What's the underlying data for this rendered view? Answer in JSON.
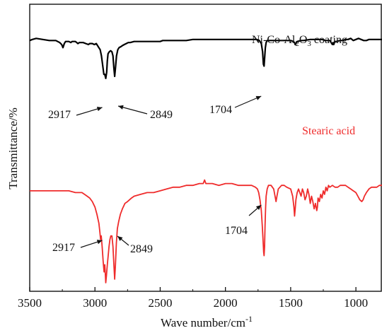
{
  "chart_data": {
    "type": "line",
    "title": "",
    "xlabel": "Wave number/cm",
    "xlabel_sup": "-1",
    "ylabel": "Transmittance/%",
    "xlim": [
      3500,
      800
    ],
    "x_reversed": true,
    "y_ticks_shown": false,
    "xticks": [
      3500,
      3000,
      2500,
      2000,
      1500,
      1000
    ],
    "series": [
      {
        "name": "Ni-Co-Al2O3 coating",
        "label_text": "Ni-Co-Al",
        "label_sub1": "2",
        "label_mid": "O",
        "label_sub2": "3",
        "label_tail": " coating",
        "color": "#000000",
        "baseline": 96,
        "points": [
          [
            3500,
            95
          ],
          [
            3480,
            96
          ],
          [
            3450,
            97
          ],
          [
            3400,
            96
          ],
          [
            3350,
            95
          ],
          [
            3300,
            95
          ],
          [
            3270,
            93
          ],
          [
            3255,
            91
          ],
          [
            3245,
            88
          ],
          [
            3235,
            92
          ],
          [
            3225,
            94
          ],
          [
            3200,
            94
          ],
          [
            3185,
            93
          ],
          [
            3175,
            94
          ],
          [
            3150,
            94
          ],
          [
            3130,
            92
          ],
          [
            3120,
            93
          ],
          [
            3090,
            93
          ],
          [
            3070,
            92
          ],
          [
            3050,
            91
          ],
          [
            3040,
            92
          ],
          [
            3020,
            92
          ],
          [
            3005,
            91
          ],
          [
            2990,
            92
          ],
          [
            2975,
            89
          ],
          [
            2960,
            86
          ],
          [
            2950,
            80
          ],
          [
            2940,
            70
          ],
          [
            2932,
            62
          ],
          [
            2925,
            62
          ],
          [
            2917,
            58
          ],
          [
            2910,
            64
          ],
          [
            2905,
            75
          ],
          [
            2900,
            82
          ],
          [
            2890,
            84
          ],
          [
            2880,
            85
          ],
          [
            2870,
            84
          ],
          [
            2862,
            80
          ],
          [
            2855,
            68
          ],
          [
            2849,
            60
          ],
          [
            2843,
            68
          ],
          [
            2835,
            80
          ],
          [
            2825,
            86
          ],
          [
            2815,
            88
          ],
          [
            2800,
            89
          ],
          [
            2790,
            90
          ],
          [
            2775,
            91
          ],
          [
            2760,
            92
          ],
          [
            2745,
            93
          ],
          [
            2730,
            93
          ],
          [
            2700,
            94
          ],
          [
            2650,
            94
          ],
          [
            2600,
            94
          ],
          [
            2550,
            94
          ],
          [
            2500,
            94
          ],
          [
            2480,
            95
          ],
          [
            2450,
            95
          ],
          [
            2400,
            95
          ],
          [
            2350,
            95
          ],
          [
            2300,
            95
          ],
          [
            2250,
            96
          ],
          [
            2200,
            96
          ],
          [
            2150,
            96
          ],
          [
            2100,
            96
          ],
          [
            2050,
            96
          ],
          [
            2000,
            96
          ],
          [
            1950,
            96
          ],
          [
            1900,
            96
          ],
          [
            1850,
            96
          ],
          [
            1800,
            96
          ],
          [
            1760,
            96
          ],
          [
            1740,
            95
          ],
          [
            1725,
            92
          ],
          [
            1715,
            84
          ],
          [
            1709,
            72
          ],
          [
            1704,
            70
          ],
          [
            1700,
            77
          ],
          [
            1694,
            88
          ],
          [
            1688,
            93
          ],
          [
            1680,
            95
          ],
          [
            1650,
            95
          ],
          [
            1600,
            95
          ],
          [
            1550,
            95
          ],
          [
            1500,
            95
          ],
          [
            1480,
            94
          ],
          [
            1470,
            93
          ],
          [
            1465,
            91
          ],
          [
            1460,
            92
          ],
          [
            1450,
            94
          ],
          [
            1420,
            95
          ],
          [
            1400,
            95
          ],
          [
            1350,
            96
          ],
          [
            1300,
            96
          ],
          [
            1260,
            96
          ],
          [
            1230,
            95
          ],
          [
            1200,
            95
          ],
          [
            1190,
            93
          ],
          [
            1180,
            91
          ],
          [
            1175,
            93
          ],
          [
            1170,
            91
          ],
          [
            1165,
            93
          ],
          [
            1160,
            94
          ],
          [
            1150,
            94
          ],
          [
            1120,
            95
          ],
          [
            1100,
            95
          ],
          [
            1080,
            96
          ],
          [
            1060,
            96
          ],
          [
            1040,
            97
          ],
          [
            1030,
            96
          ],
          [
            1020,
            95
          ],
          [
            1000,
            96
          ],
          [
            980,
            97
          ],
          [
            960,
            96
          ],
          [
            940,
            95
          ],
          [
            920,
            95
          ],
          [
            900,
            96
          ],
          [
            880,
            96
          ],
          [
            860,
            96
          ],
          [
            840,
            96
          ],
          [
            820,
            96
          ],
          [
            800,
            96
          ]
        ]
      },
      {
        "name": "Stearic acid",
        "label_text": "Stearic acid",
        "color": "#ef2b2b",
        "points": [
          [
            3500,
            53
          ],
          [
            3450,
            53
          ],
          [
            3400,
            53
          ],
          [
            3350,
            53
          ],
          [
            3300,
            53
          ],
          [
            3250,
            53
          ],
          [
            3200,
            53
          ],
          [
            3150,
            52
          ],
          [
            3100,
            52
          ],
          [
            3080,
            51
          ],
          [
            3060,
            50
          ],
          [
            3040,
            49
          ],
          [
            3020,
            47
          ],
          [
            3000,
            44
          ],
          [
            2985,
            40
          ],
          [
            2970,
            35
          ],
          [
            2962,
            30
          ],
          [
            2957,
            26
          ],
          [
            2952,
            28
          ],
          [
            2945,
            22
          ],
          [
            2937,
            14
          ],
          [
            2930,
            8
          ],
          [
            2925,
            12
          ],
          [
            2920,
            6
          ],
          [
            2917,
            2
          ],
          [
            2912,
            6
          ],
          [
            2905,
            12
          ],
          [
            2900,
            16
          ],
          [
            2892,
            22
          ],
          [
            2885,
            26
          ],
          [
            2878,
            28
          ],
          [
            2870,
            28
          ],
          [
            2862,
            22
          ],
          [
            2855,
            12
          ],
          [
            2849,
            4
          ],
          [
            2843,
            12
          ],
          [
            2836,
            24
          ],
          [
            2828,
            32
          ],
          [
            2818,
            36
          ],
          [
            2805,
            40
          ],
          [
            2790,
            43
          ],
          [
            2770,
            46
          ],
          [
            2750,
            47
          ],
          [
            2720,
            49
          ],
          [
            2700,
            50
          ],
          [
            2650,
            51
          ],
          [
            2600,
            52
          ],
          [
            2550,
            52
          ],
          [
            2500,
            53
          ],
          [
            2450,
            54
          ],
          [
            2400,
            55
          ],
          [
            2350,
            55
          ],
          [
            2300,
            56
          ],
          [
            2250,
            56
          ],
          [
            2200,
            57
          ],
          [
            2170,
            57
          ],
          [
            2160,
            59
          ],
          [
            2150,
            57
          ],
          [
            2100,
            57
          ],
          [
            2050,
            56
          ],
          [
            2000,
            57
          ],
          [
            1950,
            57
          ],
          [
            1900,
            56
          ],
          [
            1850,
            56
          ],
          [
            1800,
            56
          ],
          [
            1770,
            55
          ],
          [
            1755,
            54
          ],
          [
            1745,
            52
          ],
          [
            1735,
            48
          ],
          [
            1725,
            42
          ],
          [
            1718,
            34
          ],
          [
            1712,
            26
          ],
          [
            1707,
            19
          ],
          [
            1704,
            17
          ],
          [
            1700,
            22
          ],
          [
            1696,
            34
          ],
          [
            1692,
            44
          ],
          [
            1688,
            50
          ],
          [
            1680,
            54
          ],
          [
            1670,
            56
          ],
          [
            1650,
            56
          ],
          [
            1630,
            54
          ],
          [
            1620,
            50
          ],
          [
            1612,
            47
          ],
          [
            1605,
            50
          ],
          [
            1595,
            54
          ],
          [
            1570,
            56
          ],
          [
            1550,
            56
          ],
          [
            1530,
            55
          ],
          [
            1500,
            54
          ],
          [
            1485,
            50
          ],
          [
            1475,
            44
          ],
          [
            1470,
            39
          ],
          [
            1465,
            43
          ],
          [
            1460,
            48
          ],
          [
            1450,
            52
          ],
          [
            1440,
            54
          ],
          [
            1420,
            50
          ],
          [
            1410,
            54
          ],
          [
            1400,
            52
          ],
          [
            1390,
            48
          ],
          [
            1380,
            50
          ],
          [
            1370,
            54
          ],
          [
            1360,
            51
          ],
          [
            1350,
            46
          ],
          [
            1340,
            50
          ],
          [
            1330,
            47
          ],
          [
            1320,
            43
          ],
          [
            1310,
            46
          ],
          [
            1300,
            42
          ],
          [
            1295,
            44
          ],
          [
            1290,
            49
          ],
          [
            1280,
            47
          ],
          [
            1270,
            51
          ],
          [
            1260,
            49
          ],
          [
            1250,
            53
          ],
          [
            1240,
            51
          ],
          [
            1230,
            55
          ],
          [
            1220,
            53
          ],
          [
            1210,
            56
          ],
          [
            1200,
            55
          ],
          [
            1180,
            56
          ],
          [
            1160,
            55
          ],
          [
            1140,
            55
          ],
          [
            1120,
            56
          ],
          [
            1100,
            56
          ],
          [
            1080,
            56
          ],
          [
            1060,
            55
          ],
          [
            1040,
            54
          ],
          [
            1020,
            53
          ],
          [
            1000,
            52
          ],
          [
            985,
            50
          ],
          [
            970,
            48
          ],
          [
            955,
            47
          ],
          [
            945,
            48
          ],
          [
            935,
            50
          ],
          [
            920,
            52
          ],
          [
            900,
            54
          ],
          [
            880,
            55
          ],
          [
            860,
            55
          ],
          [
            840,
            55
          ],
          [
            820,
            56
          ],
          [
            800,
            56
          ]
        ]
      }
    ],
    "annotations": [
      {
        "text": "2917",
        "series": 0,
        "x": 2917
      },
      {
        "text": "2849",
        "series": 0,
        "x": 2849
      },
      {
        "text": "1704",
        "series": 0,
        "x": 1704
      },
      {
        "text": "2917",
        "series": 1,
        "x": 2917
      },
      {
        "text": "2849",
        "series": 1,
        "x": 2849
      },
      {
        "text": "1704",
        "series": 1,
        "x": 1704
      }
    ]
  }
}
